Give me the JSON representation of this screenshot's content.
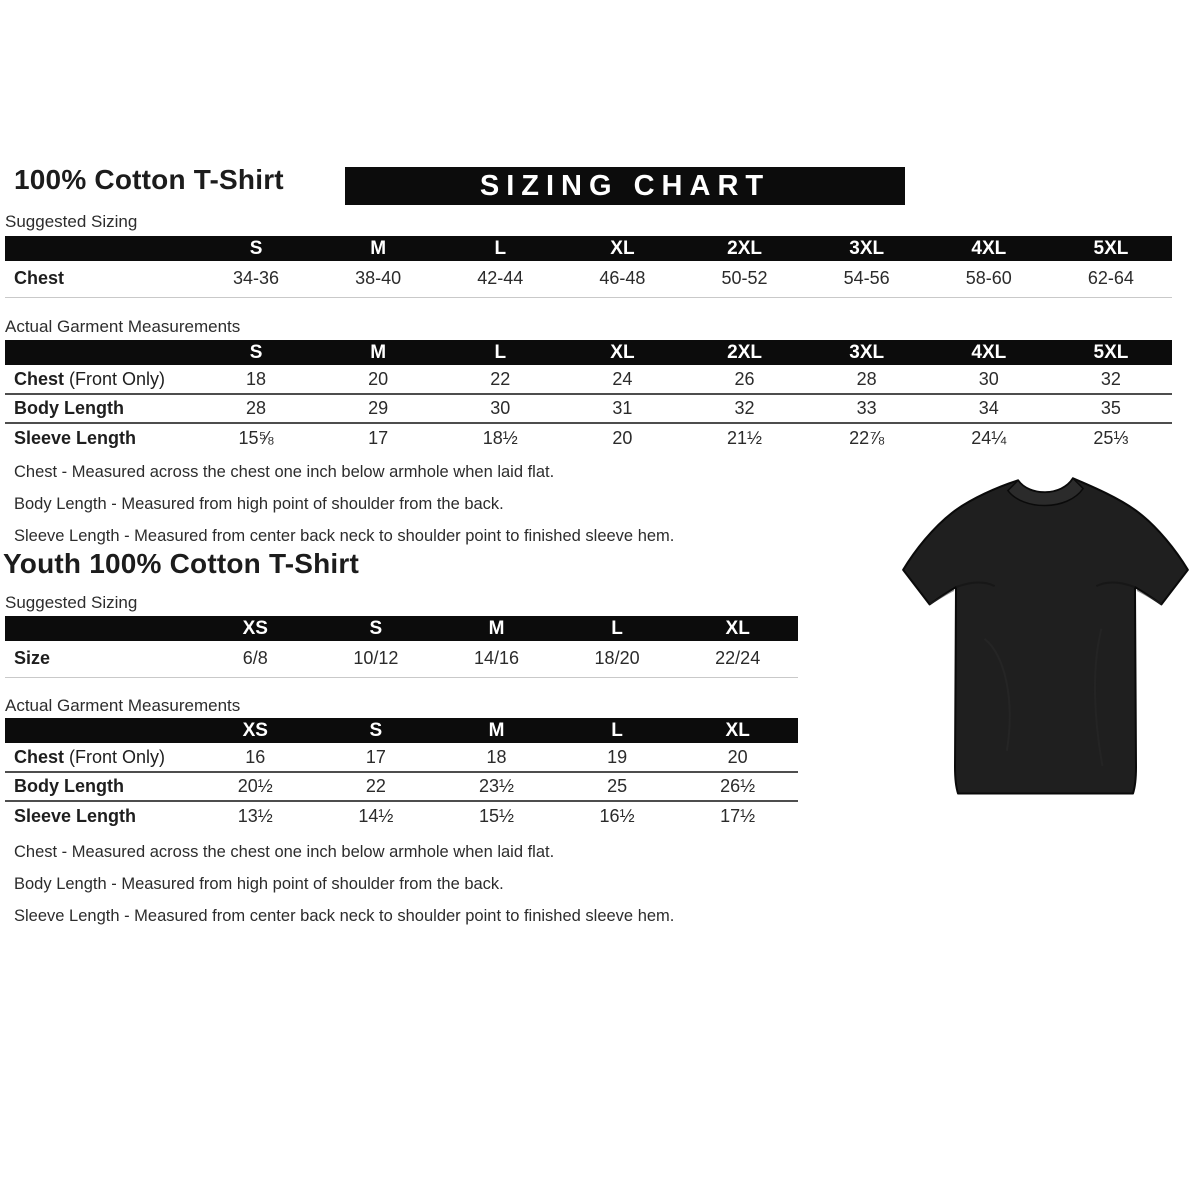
{
  "banner": "SIZING CHART",
  "labels": {
    "suggested": "Suggested Sizing",
    "actual": "Actual Garment Measurements"
  },
  "notes": [
    "Chest - Measured across the chest one inch below armhole when laid flat.",
    "Body Length - Measured from high point of shoulder from the back.",
    "Sleeve Length - Measured from center back neck to shoulder point to finished sleeve hem."
  ],
  "adult": {
    "title": "100% Cotton T-Shirt",
    "suggested": {
      "columns": [
        "S",
        "M",
        "L",
        "XL",
        "2XL",
        "3XL",
        "4XL",
        "5XL"
      ],
      "rows": [
        {
          "label": "Chest",
          "suffix": "",
          "values": [
            "34-36",
            "38-40",
            "42-44",
            "46-48",
            "50-52",
            "54-56",
            "58-60",
            "62-64"
          ]
        }
      ]
    },
    "actual": {
      "columns": [
        "S",
        "M",
        "L",
        "XL",
        "2XL",
        "3XL",
        "4XL",
        "5XL"
      ],
      "rows": [
        {
          "label": "Chest",
          "suffix": "(Front Only)",
          "values": [
            "18",
            "20",
            "22",
            "24",
            "26",
            "28",
            "30",
            "32"
          ]
        },
        {
          "label": "Body Length",
          "suffix": "",
          "values": [
            "28",
            "29",
            "30",
            "31",
            "32",
            "33",
            "34",
            "35"
          ]
        },
        {
          "label": "Sleeve Length",
          "suffix": "",
          "values": [
            "15⅝",
            "17",
            "18½",
            "20",
            "21½",
            "22⅞",
            "24¼",
            "25⅓"
          ]
        }
      ]
    }
  },
  "youth": {
    "title": "Youth 100% Cotton T-Shirt",
    "suggested": {
      "columns": [
        "XS",
        "S",
        "M",
        "L",
        "XL"
      ],
      "rows": [
        {
          "label": "Size",
          "suffix": "",
          "values": [
            "6/8",
            "10/12",
            "14/16",
            "18/20",
            "22/24"
          ]
        }
      ]
    },
    "actual": {
      "columns": [
        "XS",
        "S",
        "M",
        "L",
        "XL"
      ],
      "rows": [
        {
          "label": "Chest",
          "suffix": "(Front Only)",
          "values": [
            "16",
            "17",
            "18",
            "19",
            "20"
          ]
        },
        {
          "label": "Body Length",
          "suffix": "",
          "values": [
            "20½",
            "22",
            "23½",
            "25",
            "26½"
          ]
        },
        {
          "label": "Sleeve Length",
          "suffix": "",
          "values": [
            "13½",
            "14½",
            "15½",
            "16½",
            "17½"
          ]
        }
      ]
    }
  },
  "tshirt": {
    "name": "black-tshirt-photo",
    "body_color": "#1f1f1f",
    "collar_color": "#2b2b2b",
    "outline_color": "#0a0a0a"
  }
}
